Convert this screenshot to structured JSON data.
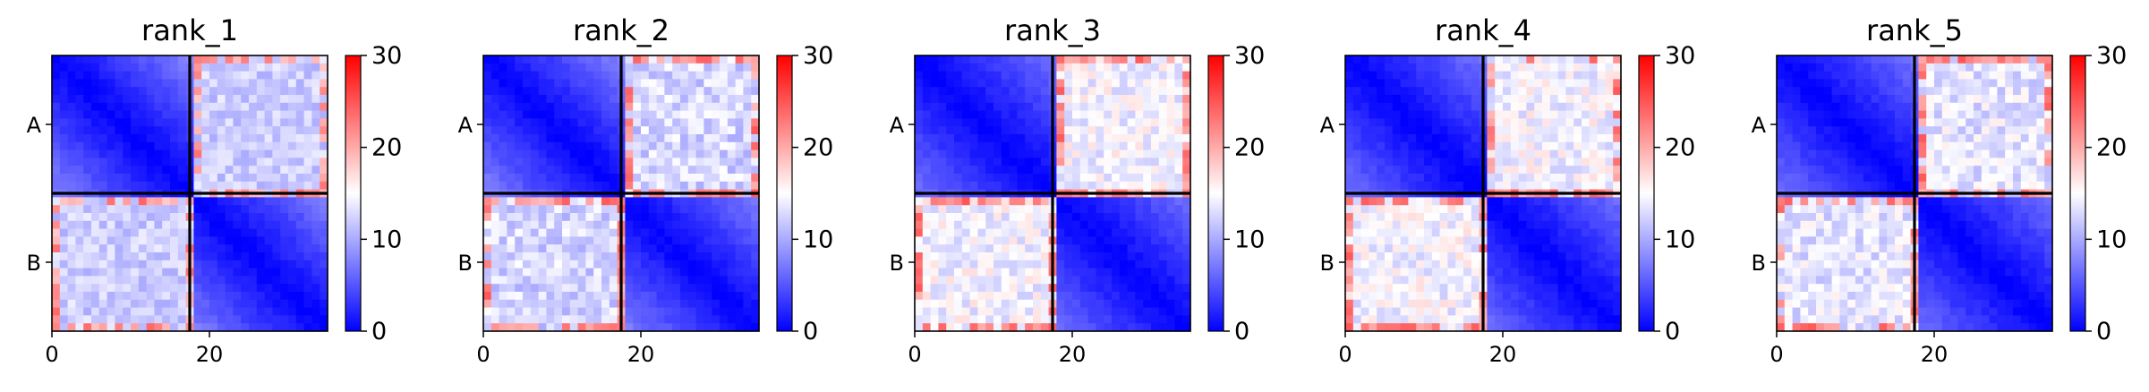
{
  "figure": {
    "layout": "1x5 grid of heatmaps, each with its own colorbar",
    "colormap": {
      "low": "#0000ff",
      "mid": "#ffffff",
      "high": "#ff0000",
      "vmin": 0,
      "vmid": 15,
      "vmax": 30
    },
    "block_line_color": "#000000"
  },
  "chart_data": [
    {
      "type": "heatmap",
      "title": "rank_1",
      "n": 35,
      "boundary": 17.5,
      "ytick_labels": [
        "A",
        "B"
      ],
      "xticks": [
        0,
        20
      ],
      "colorbar": {
        "ticks": [
          0,
          10,
          20,
          30
        ]
      },
      "self_block_values": [
        0,
        8
      ],
      "cross_block_values": [
        10,
        14
      ],
      "edge_high_values": [
        18,
        24
      ]
    },
    {
      "type": "heatmap",
      "title": "rank_2",
      "n": 35,
      "boundary": 17.5,
      "ytick_labels": [
        "A",
        "B"
      ],
      "xticks": [
        0,
        20
      ],
      "colorbar": {
        "ticks": [
          0,
          10,
          20,
          30
        ]
      },
      "self_block_values": [
        0,
        8
      ],
      "cross_block_values": [
        10,
        15
      ],
      "edge_high_values": [
        19,
        25
      ]
    },
    {
      "type": "heatmap",
      "title": "rank_3",
      "n": 35,
      "boundary": 17.5,
      "ytick_labels": [
        "A",
        "B"
      ],
      "xticks": [
        0,
        20
      ],
      "colorbar": {
        "ticks": [
          0,
          10,
          20,
          30
        ]
      },
      "self_block_values": [
        0,
        7
      ],
      "cross_block_values": [
        12,
        17
      ],
      "edge_high_values": [
        19,
        25
      ]
    },
    {
      "type": "heatmap",
      "title": "rank_4",
      "n": 35,
      "boundary": 17.5,
      "ytick_labels": [
        "A",
        "B"
      ],
      "xticks": [
        0,
        20
      ],
      "colorbar": {
        "ticks": [
          0,
          10,
          20,
          30
        ]
      },
      "self_block_values": [
        0,
        7
      ],
      "cross_block_values": [
        12,
        17
      ],
      "edge_high_values": [
        19,
        25
      ]
    },
    {
      "type": "heatmap",
      "title": "rank_5",
      "n": 35,
      "boundary": 17.5,
      "ytick_labels": [
        "A",
        "B"
      ],
      "xticks": [
        0,
        20
      ],
      "colorbar": {
        "ticks": [
          0,
          10,
          20,
          30
        ]
      },
      "self_block_values": [
        0,
        7
      ],
      "cross_block_values": [
        11,
        16
      ],
      "edge_high_values": [
        19,
        25
      ]
    }
  ]
}
